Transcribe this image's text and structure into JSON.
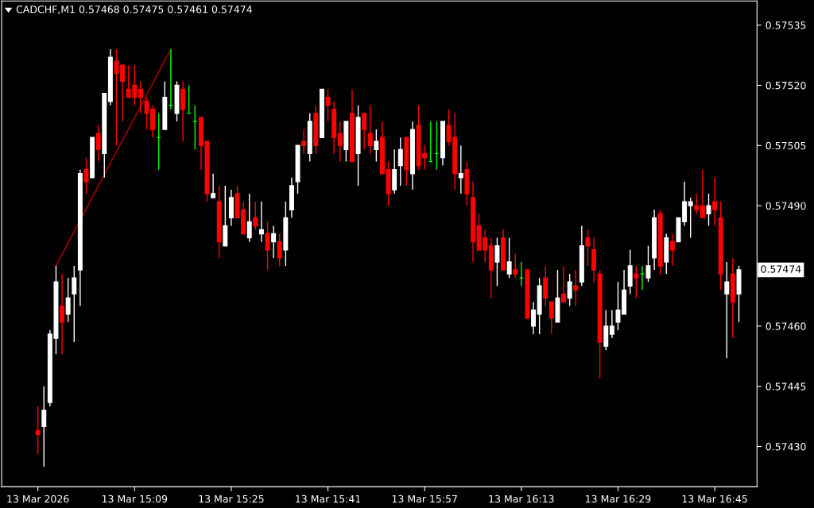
{
  "chart_data": {
    "type": "candlestick",
    "title": "CADCHF,M1 0.57468 0.57475 0.57461 0.57474",
    "x": [
      "2026-03-13T14:53",
      "2026-03-13T14:54",
      "2026-03-13T14:55",
      "2026-03-13T14:56",
      "2026-03-13T14:57",
      "2026-03-13T14:58",
      "2026-03-13T14:59",
      "2026-03-13T15:00",
      "2026-03-13T15:01",
      "2026-03-13T15:02",
      "2026-03-13T15:03",
      "2026-03-13T15:04",
      "2026-03-13T15:05",
      "2026-03-13T15:06",
      "2026-03-13T15:07",
      "2026-03-13T15:08",
      "2026-03-13T15:09",
      "2026-03-13T15:10",
      "2026-03-13T15:11",
      "2026-03-13T15:12",
      "2026-03-13T15:13",
      "2026-03-13T15:14",
      "2026-03-13T15:15",
      "2026-03-13T15:16",
      "2026-03-13T15:17",
      "2026-03-13T15:18",
      "2026-03-13T15:19",
      "2026-03-13T15:20",
      "2026-03-13T15:21",
      "2026-03-13T15:22",
      "2026-03-13T15:23",
      "2026-03-13T15:24",
      "2026-03-13T15:25",
      "2026-03-13T15:26",
      "2026-03-13T15:27",
      "2026-03-13T15:28",
      "2026-03-13T15:29",
      "2026-03-13T15:30",
      "2026-03-13T15:31",
      "2026-03-13T15:32",
      "2026-03-13T15:33",
      "2026-03-13T15:34",
      "2026-03-13T15:35",
      "2026-03-13T15:36",
      "2026-03-13T15:37",
      "2026-03-13T15:38",
      "2026-03-13T15:39",
      "2026-03-13T15:40",
      "2026-03-13T15:41",
      "2026-03-13T15:42",
      "2026-03-13T15:43",
      "2026-03-13T15:44",
      "2026-03-13T15:45",
      "2026-03-13T15:46",
      "2026-03-13T15:47",
      "2026-03-13T15:48",
      "2026-03-13T15:49",
      "2026-03-13T15:50",
      "2026-03-13T15:51",
      "2026-03-13T15:52",
      "2026-03-13T15:53",
      "2026-03-13T15:54",
      "2026-03-13T15:55",
      "2026-03-13T15:56",
      "2026-03-13T15:57",
      "2026-03-13T15:58",
      "2026-03-13T15:59",
      "2026-03-13T16:00",
      "2026-03-13T16:01",
      "2026-03-13T16:02",
      "2026-03-13T16:03",
      "2026-03-13T16:04",
      "2026-03-13T16:05",
      "2026-03-13T16:06",
      "2026-03-13T16:07",
      "2026-03-13T16:08",
      "2026-03-13T16:09",
      "2026-03-13T16:10",
      "2026-03-13T16:11",
      "2026-03-13T16:12",
      "2026-03-13T16:13",
      "2026-03-13T16:14",
      "2026-03-13T16:15",
      "2026-03-13T16:16",
      "2026-03-13T16:17",
      "2026-03-13T16:18",
      "2026-03-13T16:19",
      "2026-03-13T16:20",
      "2026-03-13T16:21",
      "2026-03-13T16:22",
      "2026-03-13T16:23",
      "2026-03-13T16:24",
      "2026-03-13T16:25",
      "2026-03-13T16:26",
      "2026-03-13T16:27",
      "2026-03-13T16:28",
      "2026-03-13T16:29",
      "2026-03-13T16:30",
      "2026-03-13T16:31",
      "2026-03-13T16:32",
      "2026-03-13T16:33",
      "2026-03-13T16:34",
      "2026-03-13T16:35",
      "2026-03-13T16:36",
      "2026-03-13T16:37",
      "2026-03-13T16:38",
      "2026-03-13T16:39",
      "2026-03-13T16:40",
      "2026-03-13T16:41",
      "2026-03-13T16:42",
      "2026-03-13T16:43",
      "2026-03-13T16:44",
      "2026-03-13T16:45",
      "2026-03-13T16:46",
      "2026-03-13T16:47",
      "2026-03-13T16:48",
      "2026-03-13T16:49"
    ],
    "ohlc": [
      [
        0.57434,
        0.5744,
        0.57428,
        0.57433
      ],
      [
        0.57435,
        0.57445,
        0.57425,
        0.57439
      ],
      [
        0.57441,
        0.57459,
        0.5744,
        0.57458
      ],
      [
        0.57457,
        0.57475,
        0.57453,
        0.57471
      ],
      [
        0.57465,
        0.57473,
        0.57453,
        0.57461
      ],
      [
        0.57463,
        0.57472,
        0.57461,
        0.57467
      ],
      [
        0.57468,
        0.57475,
        0.57456,
        0.57472
      ],
      [
        0.57474,
        0.57499,
        0.57465,
        0.57498
      ],
      [
        0.57499,
        0.57502,
        0.57493,
        0.57496
      ],
      [
        0.57497,
        0.57507,
        0.57497,
        0.57507
      ],
      [
        0.57508,
        0.5751,
        0.57501,
        0.57504
      ],
      [
        0.57503,
        0.57518,
        0.57497,
        0.57518
      ],
      [
        0.57516,
        0.57529,
        0.57515,
        0.57527
      ],
      [
        0.57526,
        0.57529,
        0.57505,
        0.57523
      ],
      [
        0.57525,
        0.57525,
        0.57511,
        0.57521
      ],
      [
        0.57519,
        0.57525,
        0.57517,
        0.57517
      ],
      [
        0.5752,
        0.57525,
        0.57515,
        0.57517
      ],
      [
        0.57519,
        0.57521,
        0.57513,
        0.57517
      ],
      [
        0.57516,
        0.57517,
        0.57509,
        0.57513
      ],
      [
        0.57514,
        0.57515,
        0.57507,
        0.57509
      ],
      [
        0.57507,
        0.57513,
        0.57499,
        0.57507
      ],
      [
        0.57509,
        0.57521,
        0.57509,
        0.57517
      ],
      [
        0.57515,
        0.57529,
        0.57514,
        0.57515
      ],
      [
        0.57513,
        0.57521,
        0.57511,
        0.5752
      ],
      [
        0.57519,
        0.57521,
        0.57506,
        0.57514
      ],
      [
        0.57513,
        0.5752,
        0.57513,
        0.57513
      ],
      [
        0.57511,
        0.57515,
        0.57504,
        0.57511
      ],
      [
        0.57512,
        0.57512,
        0.57499,
        0.57505
      ],
      [
        0.57506,
        0.57506,
        0.57491,
        0.57493
      ],
      [
        0.57492,
        0.57498,
        0.57492,
        0.57493
      ],
      [
        0.57491,
        0.57495,
        0.57477,
        0.57481
      ],
      [
        0.5748,
        0.57495,
        0.5748,
        0.57485
      ],
      [
        0.57487,
        0.57494,
        0.57485,
        0.57492
      ],
      [
        0.57493,
        0.57495,
        0.57487,
        0.57487
      ],
      [
        0.57489,
        0.57491,
        0.57483,
        0.57483
      ],
      [
        0.57482,
        0.57493,
        0.57481,
        0.57486
      ],
      [
        0.57487,
        0.57491,
        0.57484,
        0.57485
      ],
      [
        0.57483,
        0.57491,
        0.57481,
        0.57484
      ],
      [
        0.57483,
        0.57486,
        0.57474,
        0.57479
      ],
      [
        0.57481,
        0.57485,
        0.57477,
        0.57483
      ],
      [
        0.57481,
        0.57483,
        0.57475,
        0.57477
      ],
      [
        0.57479,
        0.57491,
        0.57475,
        0.57487
      ],
      [
        0.57489,
        0.57497,
        0.57487,
        0.57495
      ],
      [
        0.57496,
        0.57505,
        0.57493,
        0.57505
      ],
      [
        0.57506,
        0.57509,
        0.57503,
        0.57505
      ],
      [
        0.57503,
        0.57513,
        0.57501,
        0.57511
      ],
      [
        0.57513,
        0.57515,
        0.57503,
        0.57505
      ],
      [
        0.57507,
        0.57519,
        0.57507,
        0.57519
      ],
      [
        0.57517,
        0.57519,
        0.57511,
        0.57515
      ],
      [
        0.57514,
        0.57516,
        0.57503,
        0.57507
      ],
      [
        0.57508,
        0.57511,
        0.57501,
        0.57505
      ],
      [
        0.57504,
        0.57511,
        0.57501,
        0.57511
      ],
      [
        0.57513,
        0.57519,
        0.57501,
        0.57501
      ],
      [
        0.57503,
        0.57515,
        0.57495,
        0.57512
      ],
      [
        0.57513,
        0.57513,
        0.57504,
        0.57509
      ],
      [
        0.57508,
        0.57515,
        0.57503,
        0.57505
      ],
      [
        0.57504,
        0.57509,
        0.57501,
        0.57506
      ],
      [
        0.57507,
        0.57511,
        0.57498,
        0.57498
      ],
      [
        0.57499,
        0.57501,
        0.5749,
        0.57493
      ],
      [
        0.57494,
        0.57504,
        0.57493,
        0.57499
      ],
      [
        0.575,
        0.57507,
        0.57495,
        0.57504
      ],
      [
        0.57507,
        0.57507,
        0.57495,
        0.57499
      ],
      [
        0.57498,
        0.57511,
        0.57494,
        0.57509
      ],
      [
        0.5751,
        0.57515,
        0.57499,
        0.575
      ],
      [
        0.57503,
        0.57505,
        0.57499,
        0.57502
      ],
      [
        0.57501,
        0.57511,
        0.57501,
        0.57501
      ],
      [
        0.57503,
        0.57511,
        0.57499,
        0.57503
      ],
      [
        0.57502,
        0.57511,
        0.575,
        0.57511
      ],
      [
        0.5751,
        0.57514,
        0.57505,
        0.57506
      ],
      [
        0.57507,
        0.57513,
        0.57494,
        0.57498
      ],
      [
        0.57497,
        0.57505,
        0.57493,
        0.57498
      ],
      [
        0.57499,
        0.57501,
        0.5749,
        0.57493
      ],
      [
        0.57492,
        0.57496,
        0.57476,
        0.57481
      ],
      [
        0.57485,
        0.57488,
        0.57479,
        0.57479
      ],
      [
        0.57482,
        0.57484,
        0.57476,
        0.57479
      ],
      [
        0.5748,
        0.57482,
        0.57467,
        0.57474
      ],
      [
        0.57476,
        0.57482,
        0.5747,
        0.5748
      ],
      [
        0.57482,
        0.57484,
        0.57474,
        0.57474
      ],
      [
        0.57473,
        0.57482,
        0.57472,
        0.57476
      ],
      [
        0.57474,
        0.57478,
        0.57472,
        0.57473
      ],
      [
        0.57472,
        0.57476,
        0.5747,
        0.57472
      ],
      [
        0.57474,
        0.57474,
        0.57462,
        0.57462
      ],
      [
        0.5746,
        0.57466,
        0.57458,
        0.57464
      ],
      [
        0.57463,
        0.57472,
        0.57458,
        0.5747
      ],
      [
        0.57472,
        0.57475,
        0.57465,
        0.57467
      ],
      [
        0.57466,
        0.57466,
        0.57458,
        0.57462
      ],
      [
        0.57461,
        0.57474,
        0.57461,
        0.57467
      ],
      [
        0.57468,
        0.57475,
        0.57466,
        0.57466
      ],
      [
        0.57467,
        0.57473,
        0.57465,
        0.57471
      ],
      [
        0.5747,
        0.57474,
        0.57465,
        0.57469
      ],
      [
        0.57471,
        0.57485,
        0.5747,
        0.5748
      ],
      [
        0.57482,
        0.57484,
        0.57475,
        0.5748
      ],
      [
        0.57479,
        0.57482,
        0.57471,
        0.57474
      ],
      [
        0.57473,
        0.57474,
        0.57447,
        0.57456
      ],
      [
        0.57455,
        0.57464,
        0.57454,
        0.5746
      ],
      [
        0.57458,
        0.57464,
        0.57457,
        0.5746
      ],
      [
        0.57461,
        0.57471,
        0.57459,
        0.57464
      ],
      [
        0.57463,
        0.57474,
        0.57463,
        0.57469
      ],
      [
        0.5747,
        0.57479,
        0.57468,
        0.57475
      ],
      [
        0.57473,
        0.57475,
        0.57467,
        0.57472
      ],
      [
        0.57473,
        0.57475,
        0.57469,
        0.57473
      ],
      [
        0.57472,
        0.5748,
        0.57471,
        0.57475
      ],
      [
        0.57477,
        0.57489,
        0.57474,
        0.57487
      ],
      [
        0.57488,
        0.57489,
        0.57473,
        0.57475
      ],
      [
        0.57476,
        0.57483,
        0.57473,
        0.57482
      ],
      [
        0.57481,
        0.57483,
        0.57475,
        0.57479
      ],
      [
        0.57481,
        0.57487,
        0.57481,
        0.57487
      ],
      [
        0.57486,
        0.57496,
        0.57485,
        0.57491
      ],
      [
        0.5749,
        0.57492,
        0.57482,
        0.57491
      ],
      [
        0.5749,
        0.57493,
        0.57488,
        0.57489
      ],
      [
        0.5749,
        0.57499,
        0.57487,
        0.57487
      ],
      [
        0.57488,
        0.57493,
        0.57485,
        0.5749
      ],
      [
        0.57491,
        0.57497,
        0.57485,
        0.57489
      ],
      [
        0.57487,
        0.57491,
        0.57469,
        0.57473
      ],
      [
        0.57468,
        0.57476,
        0.57452,
        0.57471
      ],
      [
        0.57473,
        0.57477,
        0.57457,
        0.57466
      ],
      [
        0.57468,
        0.57475,
        0.57461,
        0.57474
      ]
    ],
    "colors": [
      "#ff0000",
      "#ffffff",
      "#ffffff",
      "#ffffff",
      "#ff0000",
      "#ffffff",
      "#ffffff",
      "#ffffff",
      "#ff0000",
      "#ffffff",
      "#ff0000",
      "#ffffff",
      "#ffffff",
      "#ff0000",
      "#ff0000",
      "#ff0000",
      "#ff0000",
      "#ff0000",
      "#ff0000",
      "#ff0000",
      "#00ff00",
      "#ffffff",
      "#00ff00",
      "#ffffff",
      "#ff0000",
      "#00ff00",
      "#00ff00",
      "#ff0000",
      "#ff0000",
      "#ffffff",
      "#ff0000",
      "#ffffff",
      "#ffffff",
      "#ff0000",
      "#ff0000",
      "#ffffff",
      "#ff0000",
      "#ffffff",
      "#ff0000",
      "#ffffff",
      "#ff0000",
      "#ffffff",
      "#ffffff",
      "#ffffff",
      "#ff0000",
      "#ffffff",
      "#ff0000",
      "#ffffff",
      "#ff0000",
      "#ff0000",
      "#ff0000",
      "#ffffff",
      "#ff0000",
      "#ffffff",
      "#ff0000",
      "#ff0000",
      "#ffffff",
      "#ff0000",
      "#ff0000",
      "#ffffff",
      "#ffffff",
      "#ff0000",
      "#ffffff",
      "#ff0000",
      "#ff0000",
      "#00ff00",
      "#00ff00",
      "#ffffff",
      "#ff0000",
      "#ff0000",
      "#ffffff",
      "#ff0000",
      "#ff0000",
      "#ff0000",
      "#ff0000",
      "#ff0000",
      "#ffffff",
      "#ff0000",
      "#ffffff",
      "#ff0000",
      "#00ff00",
      "#ff0000",
      "#ffffff",
      "#ffffff",
      "#ff0000",
      "#ff0000",
      "#ffffff",
      "#ff0000",
      "#ffffff",
      "#ff0000",
      "#ffffff",
      "#ff0000",
      "#ff0000",
      "#ff0000",
      "#ffffff",
      "#ffffff",
      "#ffffff",
      "#ffffff",
      "#ffffff",
      "#ff0000",
      "#00ff00",
      "#ffffff",
      "#ffffff",
      "#ff0000",
      "#ffffff",
      "#ff0000",
      "#ffffff",
      "#ffffff",
      "#ffffff",
      "#ff0000",
      "#ff0000",
      "#ffffff",
      "#ff0000",
      "#ff0000",
      "#ffffff",
      "#ff0000",
      "#ffffff"
    ],
    "series": [
      {
        "type": "line",
        "color": "#a00000",
        "x": [
          "2026-03-13T14:56",
          "2026-03-13T15:15"
        ],
        "values": [
          0.57475,
          0.57529
        ]
      }
    ],
    "xlim": [
      "2026-03-13T14:47",
      "2026-03-13T16:52"
    ],
    "xticks": [
      {
        "value": "2026-03-13T14:53",
        "label": "13 Mar 2026"
      },
      {
        "value": "2026-03-13T15:09",
        "label": "13 Mar 15:09"
      },
      {
        "value": "2026-03-13T15:25",
        "label": "13 Mar 15:25"
      },
      {
        "value": "2026-03-13T15:41",
        "label": "13 Mar 15:41"
      },
      {
        "value": "2026-03-13T15:57",
        "label": "13 Mar 15:57"
      },
      {
        "value": "2026-03-13T16:13",
        "label": "13 Mar 16:13"
      },
      {
        "value": "2026-03-13T16:29",
        "label": "13 Mar 16:29"
      },
      {
        "value": "2026-03-13T16:45",
        "label": "13 Mar 16:45"
      }
    ],
    "ylim": [
      0.5742,
      0.57541
    ],
    "yticks": [
      {
        "value": 0.5743,
        "label": "0.57430"
      },
      0.57445,
      {
        "value": 0.5746,
        "label": "0.57460"
      },
      {
        "value": 0.5749,
        "label": "0.57490"
      },
      0.57505,
      {
        "value": 0.5752,
        "label": "0.57520"
      },
      0.57535
    ],
    "annotations": [
      "0.57474"
    ],
    "grid": false
  }
}
